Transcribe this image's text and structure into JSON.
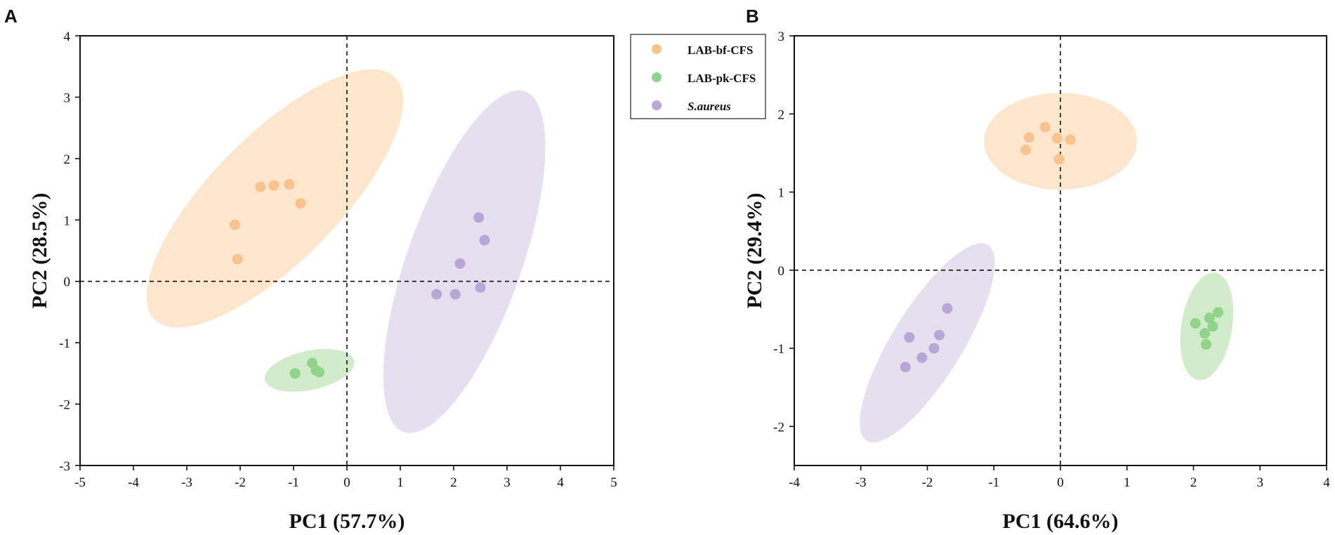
{
  "colors": {
    "LAB-bf-CFS": {
      "fill": "#fde3c7",
      "point": "#f8c38e"
    },
    "LAB-pk-CFS": {
      "fill": "#cdeac5",
      "point": "#8fd48a"
    },
    "S.aureus": {
      "fill": "#e2dbee",
      "point": "#b9a6d6"
    }
  },
  "legend": {
    "items": [
      {
        "label": "LAB-bf-CFS",
        "group": "LAB-bf-CFS",
        "italic": false
      },
      {
        "label": "LAB-pk-CFS",
        "group": "LAB-pk-CFS",
        "italic": false
      },
      {
        "label": "S.aureus",
        "group": "S.aureus",
        "italic": true
      }
    ]
  },
  "chart_data": [
    {
      "panel": "A",
      "type": "scatter",
      "xlabel": "PC1 (57.7%)",
      "ylabel": "PC2 (28.5%)",
      "xlim": [
        -5,
        5
      ],
      "ylim": [
        -3,
        4
      ],
      "xticks": [
        -5,
        -4,
        -3,
        -2,
        -1,
        0,
        1,
        2,
        3,
        4,
        5
      ],
      "yticks": [
        -3,
        -2,
        -1,
        0,
        1,
        2,
        3,
        4
      ],
      "reference_lines": {
        "x": 0,
        "y": 0
      },
      "series": [
        {
          "name": "LAB-bf-CFS",
          "points": [
            [
              -2.1,
              0.92
            ],
            [
              -2.05,
              0.36
            ],
            [
              -1.62,
              1.54
            ],
            [
              -1.37,
              1.56
            ],
            [
              -1.08,
              1.58
            ],
            [
              -0.87,
              1.27
            ]
          ],
          "ellipse": {
            "cx": -1.35,
            "cy": 1.35,
            "rx": 3.0,
            "ry": 1.1,
            "angle_deg": 40
          }
        },
        {
          "name": "LAB-pk-CFS",
          "points": [
            [
              -0.97,
              -1.5
            ],
            [
              -0.65,
              -1.33
            ],
            [
              -0.58,
              -1.45
            ],
            [
              -0.52,
              -1.48
            ]
          ],
          "ellipse": {
            "cx": -0.7,
            "cy": -1.45,
            "rx": 0.85,
            "ry": 0.32,
            "angle_deg": 10
          }
        },
        {
          "name": "S.aureus",
          "points": [
            [
              1.68,
              -0.21
            ],
            [
              2.03,
              -0.21
            ],
            [
              2.12,
              0.29
            ],
            [
              2.5,
              -0.1
            ],
            [
              2.47,
              1.04
            ],
            [
              2.58,
              0.67
            ]
          ],
          "ellipse": {
            "cx": 2.2,
            "cy": 0.32,
            "rx": 3.0,
            "ry": 1.05,
            "angle_deg": 67
          }
        }
      ]
    },
    {
      "panel": "B",
      "type": "scatter",
      "xlabel": "PC1 (64.6%)",
      "ylabel": "PC2 (29.4%)",
      "xlim": [
        -4,
        4
      ],
      "ylim": [
        -2.5,
        3
      ],
      "xticks": [
        -4,
        -3,
        -2,
        -1,
        0,
        1,
        2,
        3,
        4
      ],
      "yticks": [
        -2,
        -1,
        0,
        1,
        2,
        3
      ],
      "reference_lines": {
        "x": 0,
        "y": 0
      },
      "series": [
        {
          "name": "LAB-bf-CFS",
          "points": [
            [
              -0.52,
              1.54
            ],
            [
              -0.47,
              1.7
            ],
            [
              -0.23,
              1.83
            ],
            [
              -0.05,
              1.69
            ],
            [
              -0.02,
              1.42
            ],
            [
              0.15,
              1.67
            ]
          ],
          "ellipse": {
            "cx": 0.0,
            "cy": 1.65,
            "rx": 1.15,
            "ry": 0.62,
            "angle_deg": 0
          }
        },
        {
          "name": "LAB-pk-CFS",
          "points": [
            [
              2.03,
              -0.68
            ],
            [
              2.17,
              -0.81
            ],
            [
              2.19,
              -0.95
            ],
            [
              2.24,
              -0.61
            ],
            [
              2.29,
              -0.72
            ],
            [
              2.37,
              -0.54
            ]
          ],
          "ellipse": {
            "cx": 2.2,
            "cy": -0.72,
            "rx": 0.7,
            "ry": 0.38,
            "angle_deg": 78
          }
        },
        {
          "name": "S.aureus",
          "points": [
            [
              -2.33,
              -1.24
            ],
            [
              -2.27,
              -0.86
            ],
            [
              -2.08,
              -1.12
            ],
            [
              -1.9,
              -1.0
            ],
            [
              -1.82,
              -0.83
            ],
            [
              -1.7,
              -0.49
            ]
          ],
          "ellipse": {
            "cx": -2.0,
            "cy": -0.93,
            "rx": 1.55,
            "ry": 0.5,
            "angle_deg": 53
          }
        }
      ]
    }
  ]
}
